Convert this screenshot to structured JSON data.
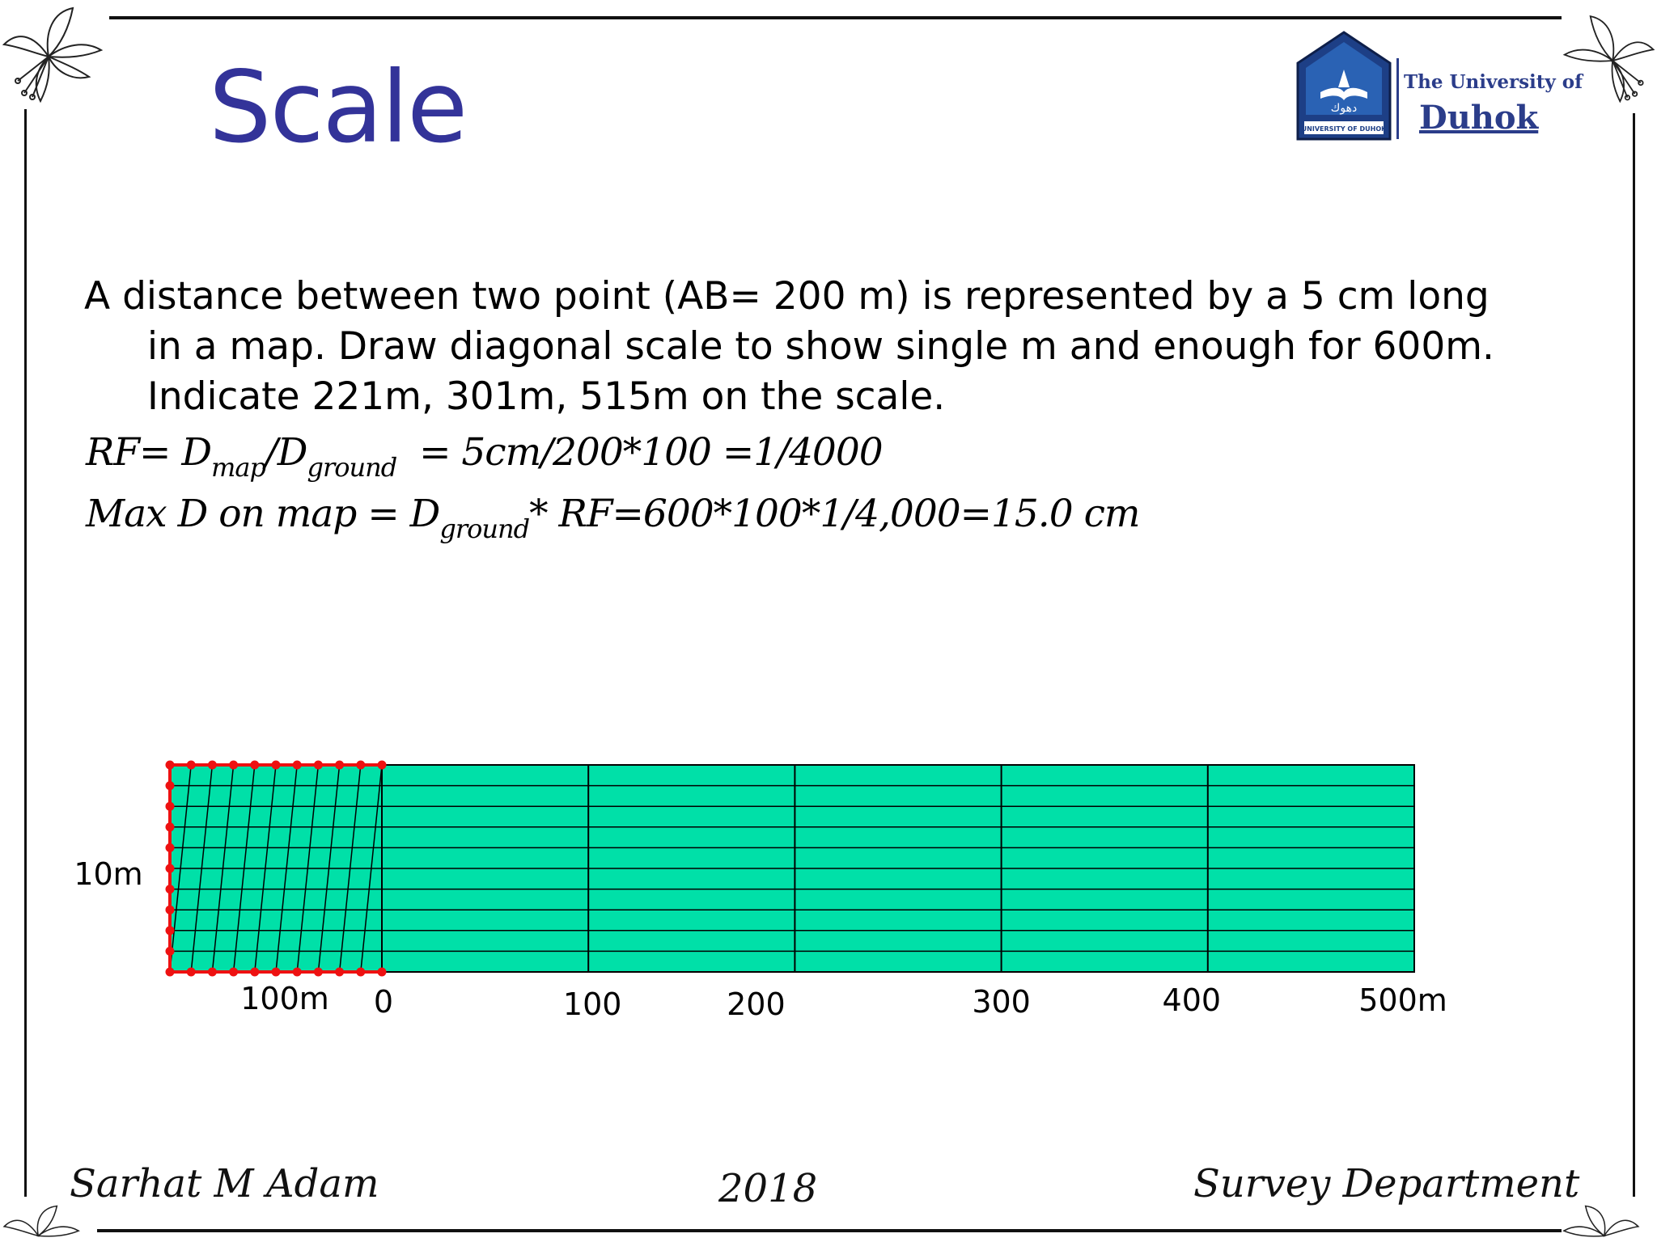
{
  "slide": {
    "title": "Scale",
    "logo": {
      "line1": "The University of",
      "line2": "Duhok",
      "badge_text": "UNIVERSITY OF DUHOK",
      "badge_arabic": "دهوك"
    },
    "problem_lines": [
      "A distance between two point (AB= 200 m) is represented by a 5 cm long",
      "in a map. Draw diagonal scale to show single m and enough for 600m.",
      "Indicate 221m, 301m, 515m on the scale."
    ],
    "formula1": {
      "prefix": "RF= D",
      "sub1": "map",
      "mid": "/D",
      "sub2": "ground",
      "suffix": "  = 5cm/200*100 =1/4000"
    },
    "formula2": {
      "prefix": "Max D on map = D",
      "sub1": "ground",
      "suffix": "* RF=600*100*1/4,000=15.0 cm"
    },
    "footer": {
      "author": "Sarhat M Adam",
      "year": "2018",
      "department": "Survey Department"
    },
    "colors": {
      "title": "#333399",
      "scale_fill": "#00e0a8",
      "diagonal_points": "#ee1111",
      "logo": "#2b3d8a"
    }
  },
  "scale_labels": {
    "vertical": "10m",
    "secondary": "100m",
    "primary": [
      "0",
      "100",
      "200",
      "300",
      "400",
      "500m"
    ]
  }
}
